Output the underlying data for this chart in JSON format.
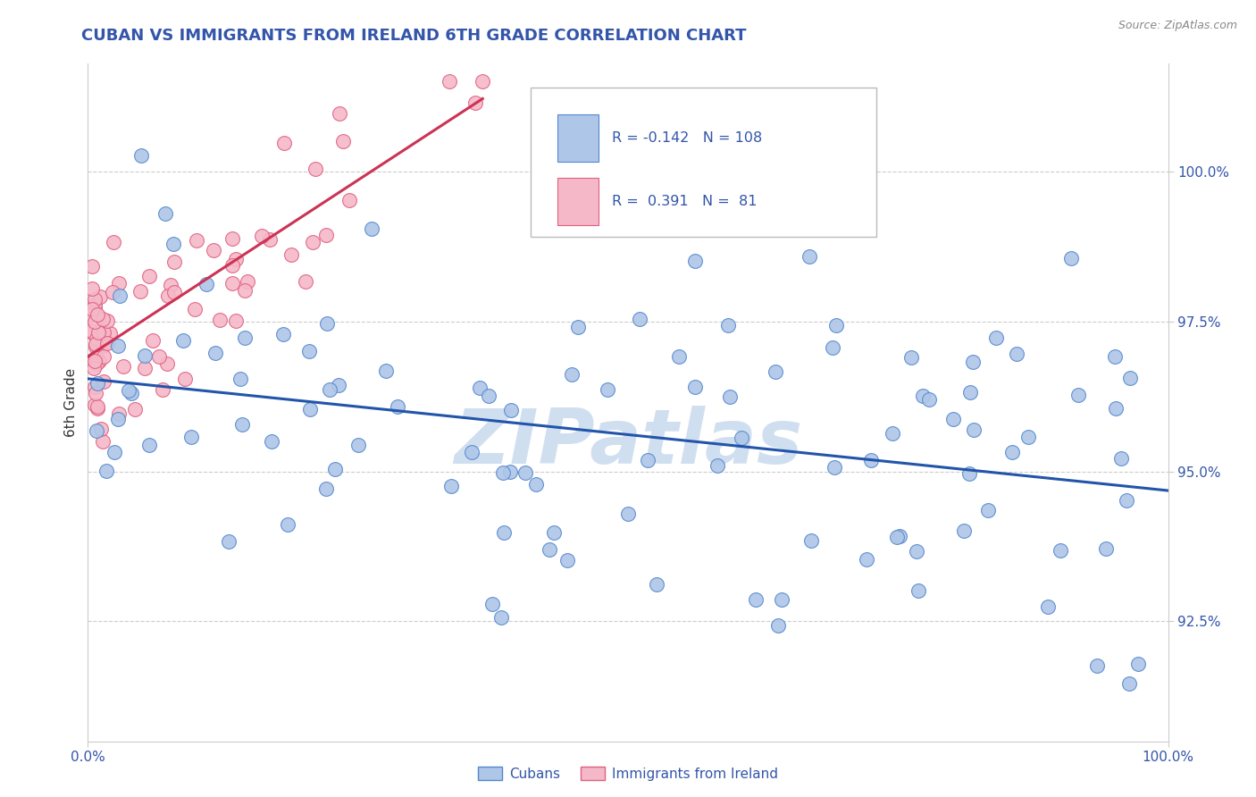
{
  "title": "CUBAN VS IMMIGRANTS FROM IRELAND 6TH GRADE CORRELATION CHART",
  "source": "Source: ZipAtlas.com",
  "ylabel": "6th Grade",
  "y_ticks": [
    92.5,
    95.0,
    97.5,
    100.0
  ],
  "y_tick_labels": [
    "92.5%",
    "95.0%",
    "97.5%",
    "100.0%"
  ],
  "x_lim": [
    0.0,
    100.0
  ],
  "y_lim": [
    90.5,
    101.8
  ],
  "blue_color": "#aec6e8",
  "blue_edge": "#5588cc",
  "pink_color": "#f5b8c8",
  "pink_edge": "#e06080",
  "trend_blue": "#2255aa",
  "trend_pink": "#cc3355",
  "legend_R1": "-0.142",
  "legend_N1": "108",
  "legend_R2": "0.391",
  "legend_N2": "81",
  "legend_color": "#3355aa",
  "watermark": "ZIPatlas",
  "watermark_color": "#d0dff0",
  "grid_color": "#cccccc"
}
